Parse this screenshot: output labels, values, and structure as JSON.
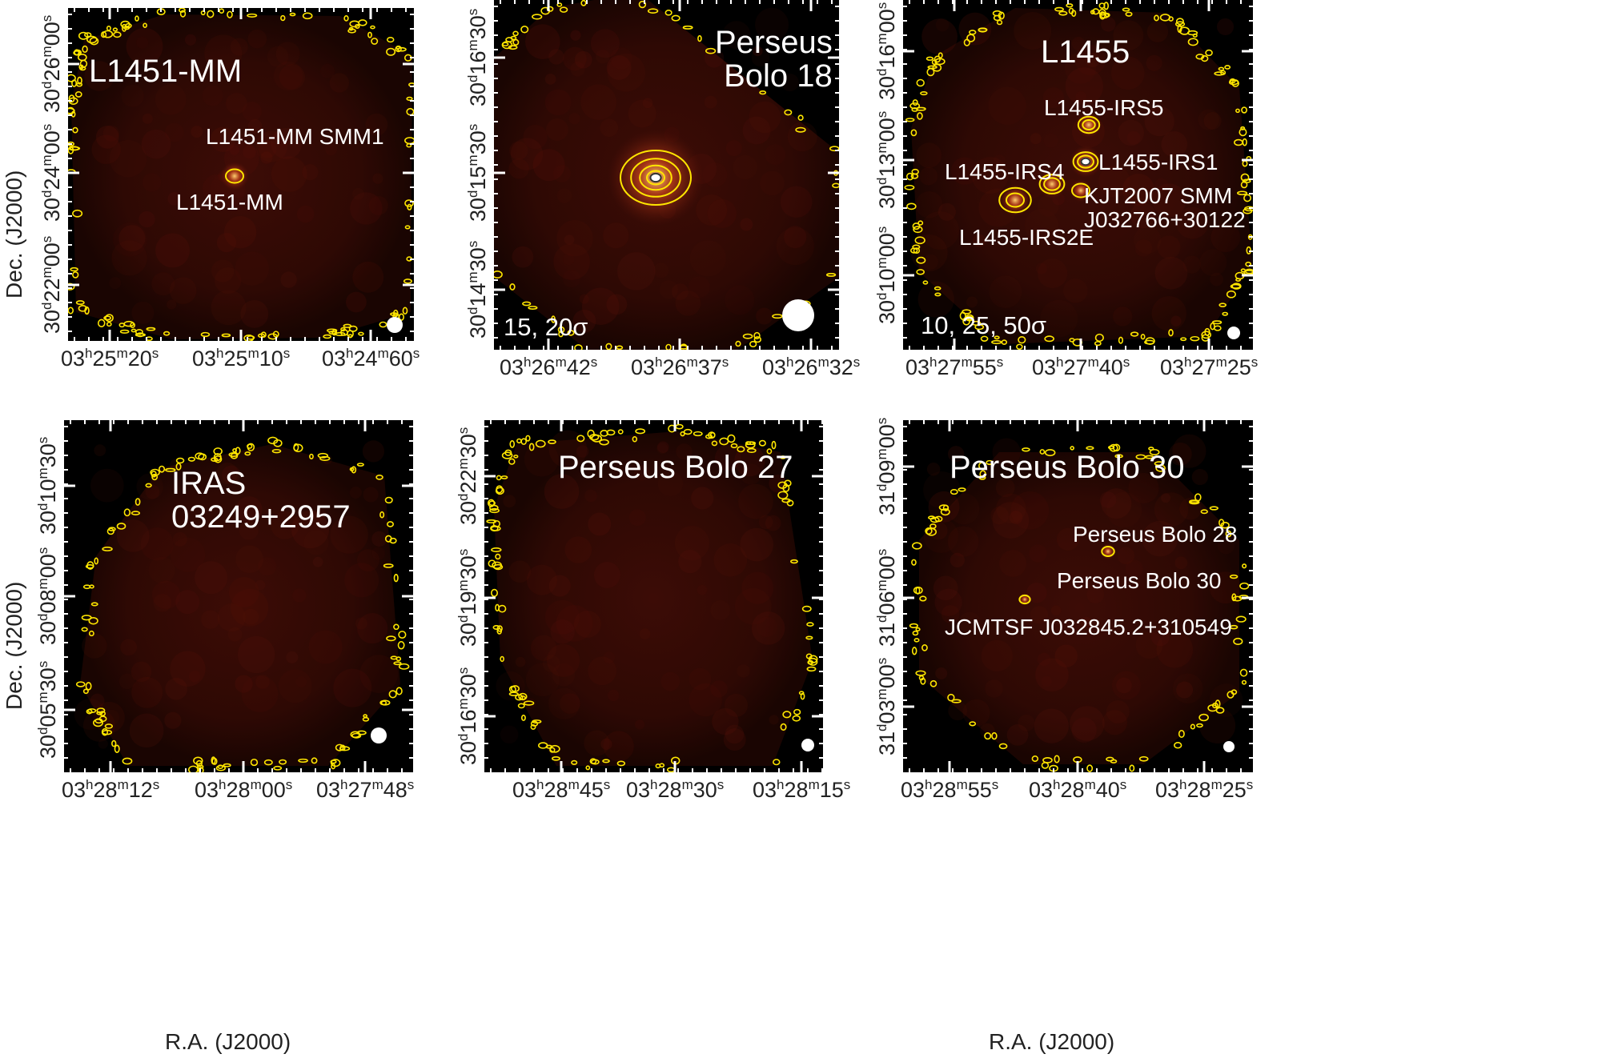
{
  "panels": [
    {
      "title": "L1451-MM",
      "labels": [
        "L1451-MM SMM1",
        "L1451-MM"
      ],
      "sigma": "",
      "ra_ticks": [
        [
          "03",
          "25",
          "20"
        ],
        [
          "03",
          "25",
          "10"
        ],
        [
          "03",
          "24",
          "60"
        ]
      ],
      "dec_ticks": [
        [
          "30",
          "26",
          "00"
        ],
        [
          "30",
          "24",
          "00"
        ],
        [
          "30",
          "22",
          "00"
        ]
      ]
    },
    {
      "title": "Perseus\nBolo 18",
      "labels": [],
      "sigma": "15, 20σ",
      "ra_ticks": [
        [
          "03",
          "26",
          "42"
        ],
        [
          "03",
          "26",
          "37"
        ],
        [
          "03",
          "26",
          "32"
        ]
      ],
      "dec_ticks": [
        [
          "30",
          "16",
          "30"
        ],
        [
          "30",
          "15",
          "30"
        ],
        [
          "30",
          "14",
          "30"
        ]
      ]
    },
    {
      "title": "L1455",
      "labels": [
        "L1455-IRS5",
        "L1455-IRS1",
        "L1455-IRS4",
        "KJT2007 SMM\nJ032766+30122",
        "L1455-IRS2E"
      ],
      "sigma": "10, 25, 50σ",
      "ra_ticks": [
        [
          "03",
          "27",
          "55"
        ],
        [
          "03",
          "27",
          "40"
        ],
        [
          "03",
          "27",
          "25"
        ]
      ],
      "dec_ticks": [
        [
          "30",
          "16",
          "00"
        ],
        [
          "30",
          "13",
          "00"
        ],
        [
          "30",
          "10",
          "00"
        ]
      ]
    },
    {
      "title": "IRAS 03249+2957",
      "labels": [],
      "sigma": "",
      "ra_ticks": [
        [
          "03",
          "28",
          "12"
        ],
        [
          "03",
          "28",
          "00"
        ],
        [
          "03",
          "27",
          "48"
        ]
      ],
      "dec_ticks": [
        [
          "30",
          "10",
          "30"
        ],
        [
          "30",
          "08",
          "00"
        ],
        [
          "30",
          "05",
          "30"
        ]
      ]
    },
    {
      "title": "Perseus Bolo 27",
      "labels": [],
      "sigma": "",
      "ra_ticks": [
        [
          "03",
          "28",
          "45"
        ],
        [
          "03",
          "28",
          "30"
        ],
        [
          "03",
          "28",
          "15"
        ]
      ],
      "dec_ticks": [
        [
          "30",
          "22",
          "30"
        ],
        [
          "30",
          "19",
          "30"
        ],
        [
          "30",
          "16",
          "30"
        ]
      ]
    },
    {
      "title": "Perseus Bolo 30",
      "labels": [
        "Perseus Bolo 28",
        "Perseus Bolo 30",
        "JCMTSF J032845.2+310549"
      ],
      "sigma": "",
      "ra_ticks": [
        [
          "03",
          "28",
          "55"
        ],
        [
          "03",
          "28",
          "40"
        ],
        [
          "03",
          "28",
          "25"
        ]
      ],
      "dec_ticks": [
        [
          "31",
          "09",
          "00"
        ],
        [
          "31",
          "06",
          "00"
        ],
        [
          "31",
          "03",
          "00"
        ]
      ]
    }
  ],
  "axes": {
    "xlabel": "R.A. (J2000)",
    "ylabel": "Dec. (J2000)"
  },
  "colors": {
    "background": "#000000",
    "emission": "#5a1208",
    "contour": "#ffe600"
  }
}
